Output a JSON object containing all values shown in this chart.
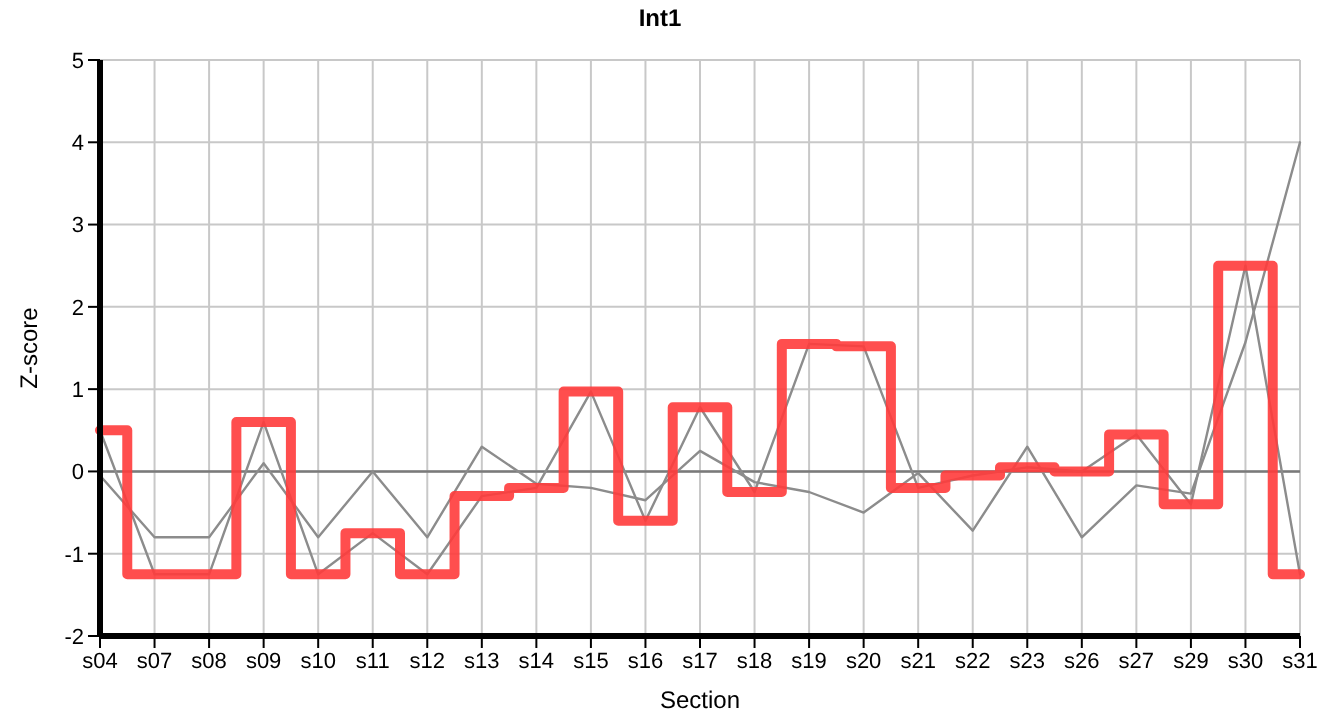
{
  "chart_data": {
    "type": "line",
    "title": "Int1",
    "xlabel": "Section",
    "ylabel": "Z-score",
    "categories": [
      "s04",
      "s07",
      "s08",
      "s09",
      "s10",
      "s11",
      "s12",
      "s13",
      "s14",
      "s15",
      "s16",
      "s17",
      "s18",
      "s19",
      "s20",
      "s21",
      "s22",
      "s23",
      "s26",
      "s27",
      "s29",
      "s30",
      "s31"
    ],
    "series": [
      {
        "color": "#8c8c8c",
        "values": [
          -0.05,
          -0.8,
          -0.8,
          0.1,
          -0.8,
          0,
          -0.8,
          0.3,
          -0.15,
          -0.2,
          -0.35,
          0.25,
          -0.13,
          -0.25,
          -0.5,
          -0.02,
          -0.72,
          0.3,
          -0.8,
          -0.17,
          -0.27,
          1.57,
          4.0
        ]
      },
      {
        "color": "#8c8c8c",
        "values": [
          0.5,
          -1.25,
          -1.25,
          0.6,
          -1.25,
          -0.75,
          -1.25,
          -0.3,
          -0.2,
          0.97,
          -0.6,
          0.78,
          -0.25,
          1.55,
          1.52,
          -0.2,
          -0.05,
          0.05,
          0,
          0.45,
          -0.4,
          2.5,
          -1.25
        ]
      },
      {
        "type": "step",
        "color": "#ff3b3b",
        "values": [
          0.5,
          -1.25,
          -1.25,
          0.6,
          -1.25,
          -0.75,
          -1.25,
          -0.3,
          -0.2,
          0.97,
          -0.6,
          0.78,
          -0.25,
          1.55,
          1.52,
          -0.2,
          -0.05,
          0.05,
          0,
          0.45,
          -0.4,
          2.5,
          -1.25
        ]
      }
    ],
    "ylim": [
      -2,
      5
    ],
    "yticks": [
      -2,
      -1,
      0,
      1,
      2,
      3,
      4,
      5
    ],
    "grid": true,
    "legend": false,
    "marker": "none",
    "line_style": "solid",
    "ref_lines": [
      {
        "axis": "y",
        "value": 0,
        "color": "#7a7a7a"
      }
    ]
  }
}
